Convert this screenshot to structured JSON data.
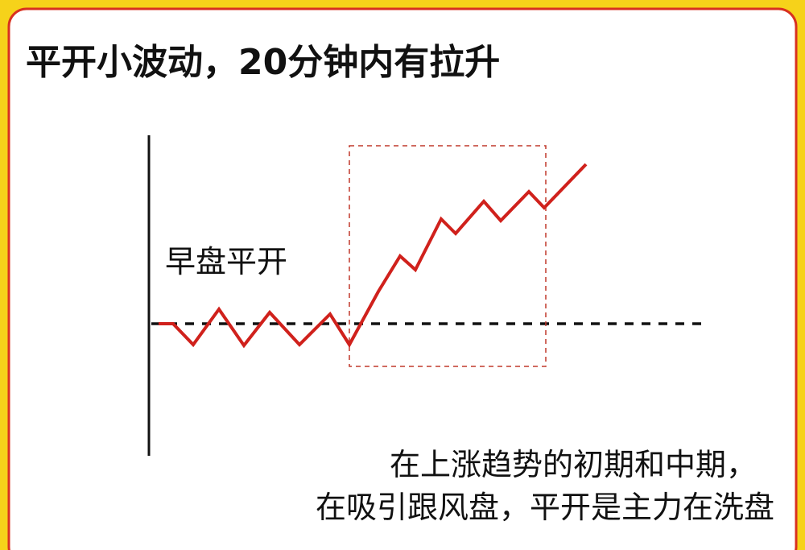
{
  "header": {
    "title": "平开小波动，20分钟内有拉升"
  },
  "diagram": {
    "label": "早盘平开"
  },
  "caption": {
    "lines": [
      "在上涨趋势的初期和中期，",
      "在吸引跟风盘，平开是主力在洗盘"
    ]
  }
}
